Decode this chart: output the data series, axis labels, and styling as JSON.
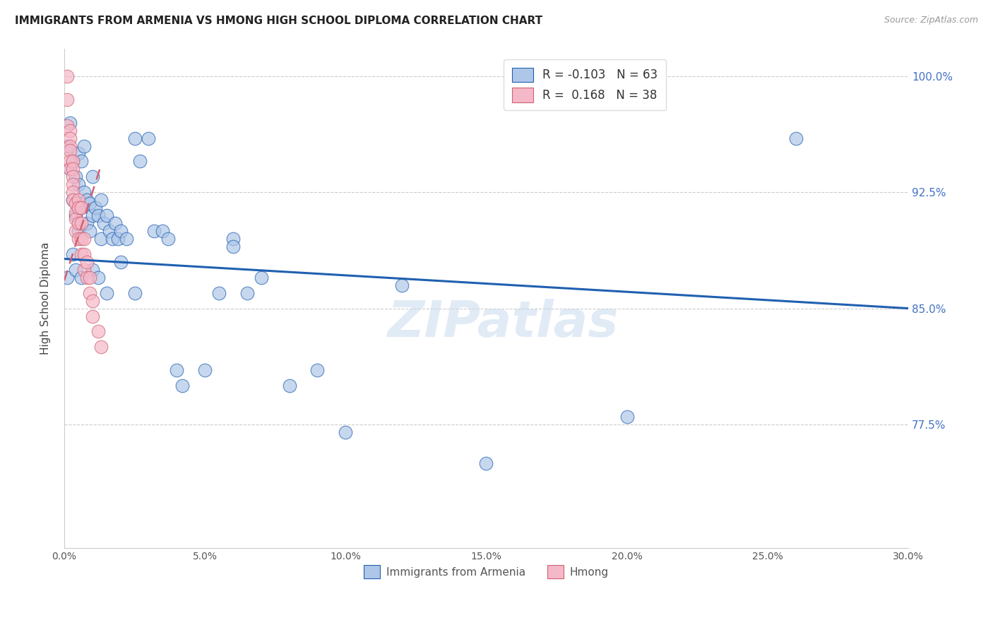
{
  "title": "IMMIGRANTS FROM ARMENIA VS HMONG HIGH SCHOOL DIPLOMA CORRELATION CHART",
  "source": "Source: ZipAtlas.com",
  "ylabel": "High School Diploma",
  "xlim": [
    0.0,
    0.3
  ],
  "ylim": [
    0.695,
    1.018
  ],
  "xticks": [
    0.0,
    0.05,
    0.1,
    0.15,
    0.2,
    0.25,
    0.3
  ],
  "xticklabels": [
    "0.0%",
    "5.0%",
    "10.0%",
    "15.0%",
    "20.0%",
    "25.0%",
    "30.0%"
  ],
  "yticks": [
    0.775,
    0.85,
    0.925,
    1.0
  ],
  "yticklabels": [
    "77.5%",
    "85.0%",
    "92.5%",
    "100.0%"
  ],
  "legend_armenia": "R = -0.103   N = 63",
  "legend_hmong": "R =  0.168   N = 38",
  "legend_label_armenia": "Immigrants from Armenia",
  "legend_label_hmong": "Hmong",
  "armenia_color": "#aec6e8",
  "hmong_color": "#f5b8c8",
  "trendline_armenia_color": "#2060b0",
  "trendline_hmong_color": "#d06070",
  "background_color": "#ffffff",
  "grid_color": "#cccccc",
  "title_color": "#222222",
  "axis_color": "#4472C4",
  "watermark": "ZIPatlas",
  "armenia_trend_x0": 0.0,
  "armenia_trend_y0": 0.882,
  "armenia_trend_x1": 0.3,
  "armenia_trend_y1": 0.85,
  "hmong_trend_x0": 0.0,
  "hmong_trend_y0": 0.868,
  "hmong_trend_x1": 0.013,
  "hmong_trend_y1": 0.942,
  "armenia_x": [
    0.001,
    0.002,
    0.002,
    0.003,
    0.003,
    0.004,
    0.004,
    0.005,
    0.005,
    0.005,
    0.005,
    0.006,
    0.006,
    0.007,
    0.007,
    0.008,
    0.008,
    0.009,
    0.009,
    0.01,
    0.01,
    0.011,
    0.012,
    0.013,
    0.013,
    0.014,
    0.015,
    0.016,
    0.017,
    0.018,
    0.019,
    0.02,
    0.022,
    0.025,
    0.027,
    0.03,
    0.032,
    0.035,
    0.037,
    0.04,
    0.042,
    0.05,
    0.055,
    0.06,
    0.065,
    0.07,
    0.08,
    0.09,
    0.1,
    0.12,
    0.15,
    0.2,
    0.26,
    0.001,
    0.003,
    0.004,
    0.006,
    0.01,
    0.012,
    0.015,
    0.02,
    0.025,
    0.06
  ],
  "armenia_y": [
    0.955,
    0.97,
    0.94,
    0.945,
    0.92,
    0.935,
    0.91,
    0.95,
    0.93,
    0.915,
    0.9,
    0.945,
    0.915,
    0.955,
    0.925,
    0.92,
    0.905,
    0.918,
    0.9,
    0.935,
    0.91,
    0.915,
    0.91,
    0.92,
    0.895,
    0.905,
    0.91,
    0.9,
    0.895,
    0.905,
    0.895,
    0.9,
    0.895,
    0.96,
    0.945,
    0.96,
    0.9,
    0.9,
    0.895,
    0.81,
    0.8,
    0.81,
    0.86,
    0.895,
    0.86,
    0.87,
    0.8,
    0.81,
    0.77,
    0.865,
    0.75,
    0.78,
    0.96,
    0.87,
    0.885,
    0.875,
    0.87,
    0.875,
    0.87,
    0.86,
    0.88,
    0.86,
    0.89
  ],
  "hmong_x": [
    0.001,
    0.001,
    0.001,
    0.002,
    0.002,
    0.002,
    0.002,
    0.002,
    0.002,
    0.003,
    0.003,
    0.003,
    0.003,
    0.003,
    0.003,
    0.004,
    0.004,
    0.004,
    0.004,
    0.005,
    0.005,
    0.005,
    0.005,
    0.006,
    0.006,
    0.006,
    0.006,
    0.007,
    0.007,
    0.007,
    0.008,
    0.008,
    0.009,
    0.009,
    0.01,
    0.01,
    0.012,
    0.013
  ],
  "hmong_y": [
    1.0,
    0.985,
    0.968,
    0.965,
    0.96,
    0.955,
    0.952,
    0.945,
    0.94,
    0.945,
    0.94,
    0.935,
    0.93,
    0.925,
    0.92,
    0.918,
    0.912,
    0.908,
    0.9,
    0.92,
    0.915,
    0.905,
    0.895,
    0.915,
    0.905,
    0.895,
    0.885,
    0.895,
    0.885,
    0.875,
    0.88,
    0.87,
    0.87,
    0.86,
    0.855,
    0.845,
    0.835,
    0.825
  ]
}
